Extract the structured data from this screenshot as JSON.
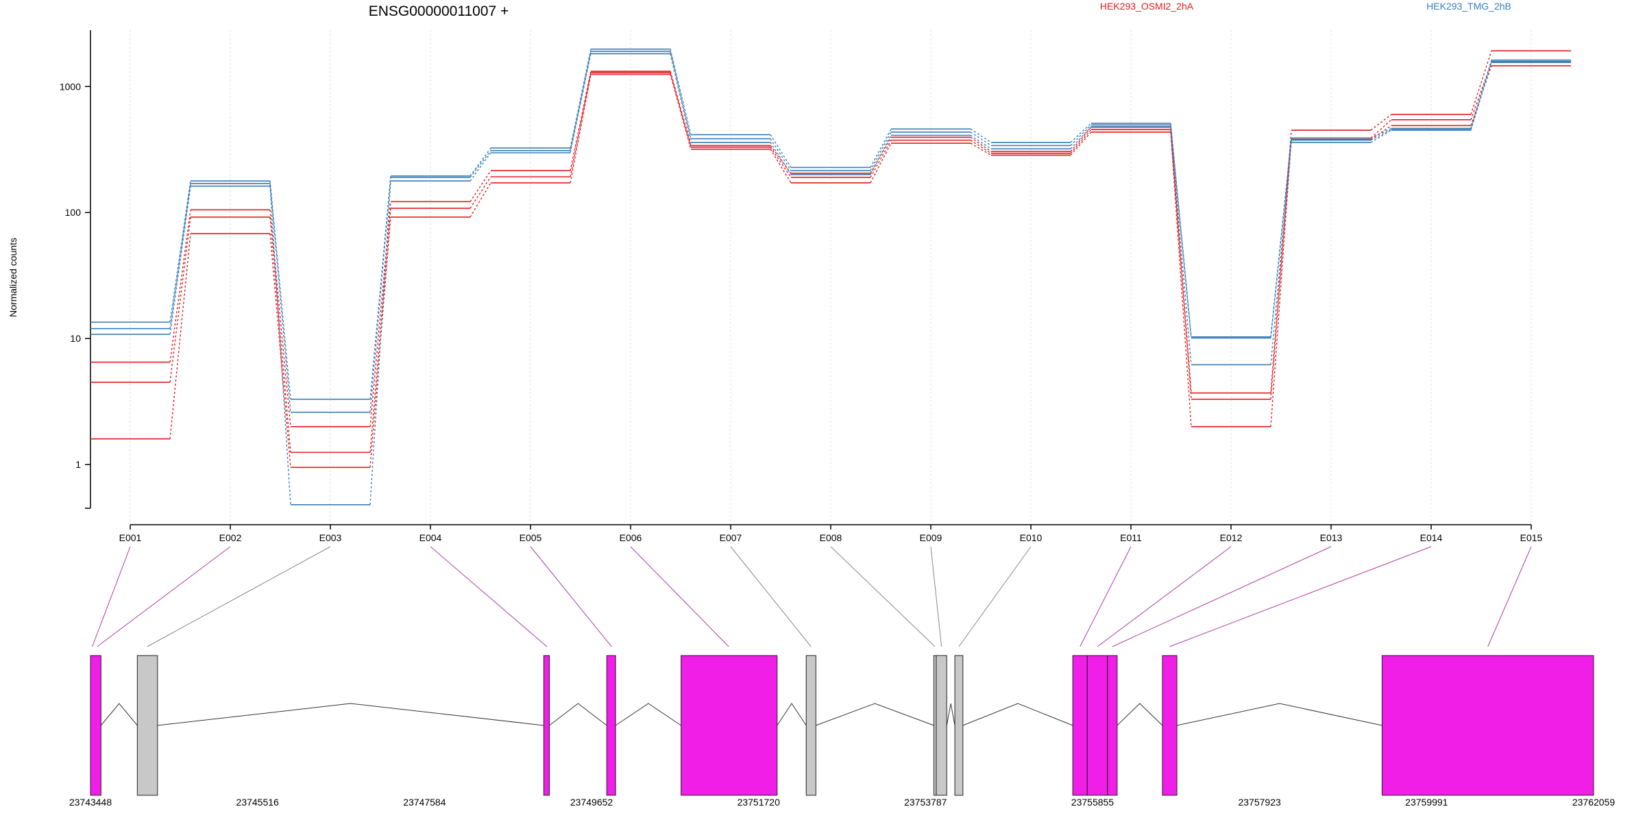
{
  "chart_data": {
    "type": "line",
    "title": "ENSG00000011007 +",
    "ylabel": "Normalized counts",
    "xlabel": "",
    "yscale": "log",
    "ylim": [
      0.45,
      2800
    ],
    "yticks": [
      1,
      10,
      100,
      1000
    ],
    "ytick_labels": [
      "1",
      "10",
      "100",
      "1000"
    ],
    "grid": "vertical dotted lines at each exon",
    "legend_placement": "top",
    "categories": [
      "E001",
      "E002",
      "E003",
      "E004",
      "E005",
      "E006",
      "E007",
      "E008",
      "E009",
      "E010",
      "E011",
      "E012",
      "E013",
      "E014",
      "E015"
    ],
    "series": [
      {
        "group": "HEK293_OSMI2_2hA",
        "color": "#e41a1c",
        "values": [
          6.5,
          105,
          2.0,
          122,
          215,
          1320,
          340,
          205,
          395,
          305,
          475,
          3.7,
          450,
          600,
          1920
        ]
      },
      {
        "group": "HEK293_OSMI2_2hA",
        "color": "#e41a1c",
        "values": [
          4.5,
          92,
          1.25,
          108,
          192,
          1290,
          330,
          190,
          375,
          295,
          455,
          3.3,
          390,
          545,
          1560
        ]
      },
      {
        "group": "HEK293_OSMI2_2hA",
        "color": "#e41a1c",
        "values": [
          1.6,
          68,
          0.95,
          92,
          172,
          1250,
          318,
          172,
          355,
          285,
          435,
          2.0,
          380,
          490,
          1460
        ]
      },
      {
        "group": "HEK293_TMG_2hB",
        "color": "#377eb8",
        "values": [
          13.5,
          178,
          3.3,
          195,
          325,
          1980,
          415,
          228,
          460,
          360,
          510,
          10.3,
          390,
          465,
          1620
        ]
      },
      {
        "group": "HEK293_TMG_2hB",
        "color": "#377eb8",
        "values": [
          12.0,
          170,
          2.6,
          190,
          310,
          1900,
          385,
          215,
          435,
          340,
          495,
          10.1,
          375,
          455,
          1580
        ]
      },
      {
        "group": "HEK293_TMG_2hB",
        "color": "#377eb8",
        "values": [
          10.8,
          162,
          0.48,
          178,
          298,
          1820,
          360,
          200,
          410,
          320,
          480,
          6.2,
          360,
          450,
          1550
        ]
      }
    ],
    "legend": [
      {
        "label": "HEK293_OSMI2_2hA",
        "color": "#e41a1c"
      },
      {
        "label": "HEK293_TMG_2hB",
        "color": "#377eb8"
      }
    ],
    "gene_model": {
      "coord_start": 23743448,
      "coord_end": 23762059,
      "coord_ticks": [
        23743448,
        23745516,
        23747584,
        23749652,
        23751720,
        23753787,
        23755855,
        23757923,
        23759991,
        23762059
      ],
      "coord_tick_labels": [
        "23743448",
        "23745516",
        "23747584",
        "23749652",
        "23751720",
        "23753787",
        "23755855",
        "23757923",
        "23759991",
        "23762059"
      ],
      "exon_color_expressed": "#f01ee6",
      "exon_color_other": "#c8c8c8",
      "blocks": [
        {
          "start": 23743448,
          "end": 23743578,
          "color": "magenta"
        },
        {
          "start": 23744028,
          "end": 23744278,
          "color": "grey"
        },
        {
          "start": 23749060,
          "end": 23749130,
          "color": "magenta"
        },
        {
          "start": 23749840,
          "end": 23749950,
          "color": "magenta"
        },
        {
          "start": 23750760,
          "end": 23751950,
          "color": "magenta"
        },
        {
          "start": 23752310,
          "end": 23752430,
          "color": "grey"
        },
        {
          "start": 23753890,
          "end": 23753920,
          "color": "grey"
        },
        {
          "start": 23753920,
          "end": 23754050,
          "color": "grey"
        },
        {
          "start": 23754150,
          "end": 23754250,
          "color": "grey"
        },
        {
          "start": 23755610,
          "end": 23755790,
          "color": "magenta"
        },
        {
          "start": 23755790,
          "end": 23756040,
          "color": "magenta"
        },
        {
          "start": 23756040,
          "end": 23756160,
          "color": "magenta"
        },
        {
          "start": 23756720,
          "end": 23756900,
          "color": "magenta"
        },
        {
          "start": 23759440,
          "end": 23762059,
          "color": "magenta"
        }
      ],
      "introns": [
        [
          23743578,
          23744028
        ],
        [
          23744278,
          23749060
        ],
        [
          23749130,
          23749840
        ],
        [
          23749950,
          23750760
        ],
        [
          23751950,
          23752310
        ],
        [
          23752430,
          23753890
        ],
        [
          23754050,
          23754150
        ],
        [
          23754250,
          23755610
        ],
        [
          23756160,
          23756720
        ],
        [
          23756900,
          23759440
        ]
      ],
      "exon_links": [
        {
          "exon": "E001",
          "pos": 23743470,
          "color": "magenta"
        },
        {
          "exon": "E002",
          "pos": 23743530,
          "color": "magenta"
        },
        {
          "exon": "E003",
          "pos": 23744150,
          "color": "grey"
        },
        {
          "exon": "E004",
          "pos": 23749100,
          "color": "magenta"
        },
        {
          "exon": "E005",
          "pos": 23749900,
          "color": "magenta"
        },
        {
          "exon": "E006",
          "pos": 23751350,
          "color": "magenta"
        },
        {
          "exon": "E007",
          "pos": 23752370,
          "color": "grey"
        },
        {
          "exon": "E008",
          "pos": 23753905,
          "color": "grey"
        },
        {
          "exon": "E009",
          "pos": 23753985,
          "color": "grey"
        },
        {
          "exon": "E010",
          "pos": 23754200,
          "color": "grey"
        },
        {
          "exon": "E011",
          "pos": 23755700,
          "color": "magenta"
        },
        {
          "exon": "E012",
          "pos": 23755915,
          "color": "magenta"
        },
        {
          "exon": "E013",
          "pos": 23756100,
          "color": "magenta"
        },
        {
          "exon": "E014",
          "pos": 23756810,
          "color": "magenta"
        },
        {
          "exon": "E015",
          "pos": 23760750,
          "color": "magenta"
        }
      ]
    }
  }
}
